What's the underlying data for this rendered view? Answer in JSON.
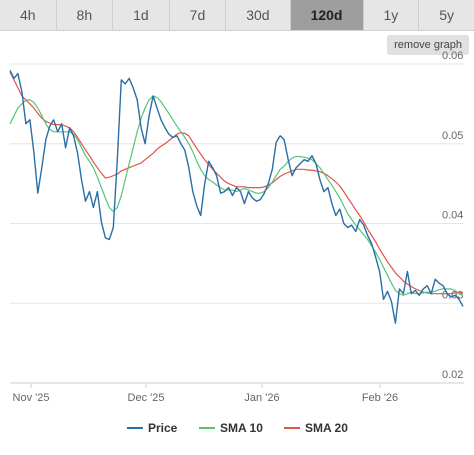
{
  "range_tabs": [
    "4h",
    "8h",
    "1d",
    "7d",
    "30d",
    "120d",
    "1y",
    "5y"
  ],
  "active_tab": "120d",
  "remove_label": "remove graph",
  "colors": {
    "price": "#2a6ea6",
    "sma10": "#55c47a",
    "sma20": "#e0554a"
  },
  "chart_data": {
    "type": "line",
    "x_ticks": [
      "Nov '25",
      "Dec '25",
      "Jan '26",
      "Feb '26"
    ],
    "y_ticks": [
      "0.06",
      "0.05",
      "0.04",
      "0.03",
      "0.02"
    ],
    "ylim": [
      0.02,
      0.06
    ],
    "grid": true,
    "legend_position": "bottom",
    "series": [
      {
        "name": "Price",
        "values": [
          0.0592,
          0.0582,
          0.0588,
          0.0565,
          0.0525,
          0.053,
          0.049,
          0.0438,
          0.047,
          0.0505,
          0.0522,
          0.053,
          0.0515,
          0.0525,
          0.0495,
          0.052,
          0.051,
          0.0488,
          0.0455,
          0.0428,
          0.044,
          0.042,
          0.044,
          0.0402,
          0.0382,
          0.038,
          0.0395,
          0.048,
          0.058,
          0.0575,
          0.0582,
          0.057,
          0.0555,
          0.052,
          0.05,
          0.0535,
          0.056,
          0.0545,
          0.053,
          0.052,
          0.0512,
          0.0508,
          0.051,
          0.05,
          0.0492,
          0.047,
          0.044,
          0.0422,
          0.041,
          0.045,
          0.0478,
          0.047,
          0.046,
          0.0438,
          0.044,
          0.0445,
          0.0435,
          0.0445,
          0.044,
          0.0425,
          0.044,
          0.0432,
          0.0428,
          0.043,
          0.0438,
          0.045,
          0.0468,
          0.0502,
          0.051,
          0.0505,
          0.048,
          0.046,
          0.047,
          0.0475,
          0.048,
          0.0478,
          0.0485,
          0.0475,
          0.0455,
          0.044,
          0.0445,
          0.0425,
          0.041,
          0.0418,
          0.04,
          0.0395,
          0.0398,
          0.039,
          0.0405,
          0.0398,
          0.0385,
          0.0375,
          0.0358,
          0.034,
          0.0305,
          0.0315,
          0.0302,
          0.0275,
          0.0318,
          0.0312,
          0.034,
          0.0312,
          0.0316,
          0.031,
          0.0318,
          0.0322,
          0.0312,
          0.033,
          0.0325,
          0.0322,
          0.0312,
          0.0308,
          0.031,
          0.0305,
          0.0296
        ]
      },
      {
        "name": "SMA 10",
        "values": [
          0.0525,
          0.0535,
          0.0545,
          0.055,
          0.0555,
          0.0555,
          0.0552,
          0.0545,
          0.0535,
          0.0525,
          0.0518,
          0.0515,
          0.0515,
          0.0515,
          0.0515,
          0.0515,
          0.0512,
          0.0505,
          0.0495,
          0.0485,
          0.0478,
          0.047,
          0.0458,
          0.0445,
          0.0432,
          0.042,
          0.0415,
          0.042,
          0.0435,
          0.0455,
          0.0475,
          0.0495,
          0.0515,
          0.0532,
          0.0545,
          0.0555,
          0.056,
          0.0558,
          0.0553,
          0.0545,
          0.0538,
          0.053,
          0.0522,
          0.0515,
          0.0508,
          0.05,
          0.049,
          0.0478,
          0.0468,
          0.046,
          0.0455,
          0.0452,
          0.0448,
          0.0445,
          0.0442,
          0.0442,
          0.0442,
          0.044,
          0.0442,
          0.0444,
          0.0442,
          0.044,
          0.0438,
          0.0438,
          0.044,
          0.0445,
          0.0452,
          0.046,
          0.0468,
          0.0472,
          0.0478,
          0.0482,
          0.0484,
          0.0484,
          0.0483,
          0.0482,
          0.048,
          0.0475,
          0.047,
          0.0463,
          0.0455,
          0.0448,
          0.044,
          0.0432,
          0.0422,
          0.0412,
          0.0405,
          0.0398,
          0.0392,
          0.0386,
          0.038,
          0.0372,
          0.0364,
          0.0355,
          0.0345,
          0.0335,
          0.0325,
          0.0316,
          0.0312,
          0.031,
          0.0312,
          0.0314,
          0.0312,
          0.0312,
          0.0313,
          0.0314,
          0.0314,
          0.0315,
          0.0317,
          0.0318,
          0.0318,
          0.0318,
          0.0316,
          0.0312,
          0.031
        ]
      },
      {
        "name": "SMA 20",
        "values": [
          0.059,
          0.058,
          0.057,
          0.056,
          0.0555,
          0.055,
          0.0545,
          0.0538,
          0.0532,
          0.0528,
          0.0526,
          0.0524,
          0.0524,
          0.0524,
          0.0522,
          0.052,
          0.0515,
          0.0508,
          0.05,
          0.0492,
          0.0485,
          0.0477,
          0.047,
          0.0463,
          0.0457,
          0.0458,
          0.046,
          0.0462,
          0.0466,
          0.0468,
          0.047,
          0.0472,
          0.0474,
          0.0476,
          0.048,
          0.0484,
          0.0488,
          0.0493,
          0.0497,
          0.05,
          0.0504,
          0.0508,
          0.0512,
          0.0514,
          0.0513,
          0.051,
          0.0502,
          0.0494,
          0.0487,
          0.048,
          0.0474,
          0.0468,
          0.0463,
          0.0458,
          0.0453,
          0.045,
          0.0448,
          0.0446,
          0.0446,
          0.0446,
          0.0445,
          0.0445,
          0.0445,
          0.0445,
          0.0446,
          0.0448,
          0.0451,
          0.0455,
          0.0459,
          0.0462,
          0.0464,
          0.0466,
          0.0468,
          0.0468,
          0.0468,
          0.0467,
          0.0467,
          0.0466,
          0.0465,
          0.0463,
          0.046,
          0.0456,
          0.0452,
          0.0447,
          0.044,
          0.0432,
          0.0425,
          0.0417,
          0.041,
          0.0402,
          0.0393,
          0.0385,
          0.0377,
          0.0368,
          0.036,
          0.0352,
          0.0345,
          0.0338,
          0.0333,
          0.0328,
          0.0324,
          0.0321,
          0.0318,
          0.0316,
          0.0314,
          0.0313,
          0.0312,
          0.0312,
          0.0312,
          0.0312,
          0.0312,
          0.0312,
          0.0313,
          0.0313,
          0.0313
        ]
      }
    ]
  }
}
